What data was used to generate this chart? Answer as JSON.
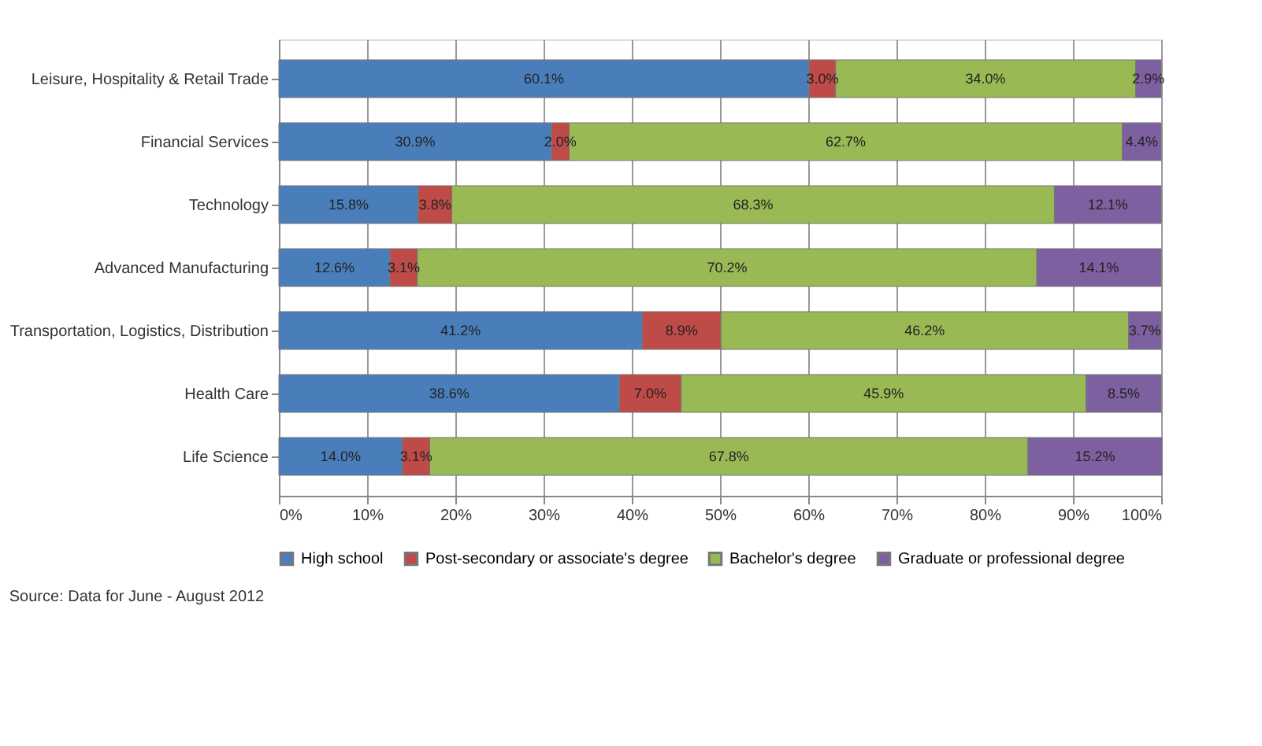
{
  "chart_data": {
    "type": "bar",
    "orientation": "horizontal",
    "stacked": true,
    "categories": [
      "Leisure, Hospitality & Retail Trade",
      "Financial Services",
      "Technology",
      "Advanced Manufacturing",
      "Transportation, Logistics, Distribution",
      "Health Care",
      "Life Science"
    ],
    "series": [
      {
        "name": "High school",
        "color": "#4a7ebb",
        "values": [
          60.1,
          30.9,
          15.8,
          12.6,
          41.2,
          38.6,
          14.0
        ],
        "value_labels": [
          "60.1%",
          "30.9%",
          "15.8%",
          "12.6%",
          "41.2%",
          "38.6%",
          "14.0%"
        ]
      },
      {
        "name": "Post-secondary or associate's degree",
        "color": "#be4b48",
        "values": [
          3.0,
          2.0,
          3.8,
          3.1,
          8.9,
          7.0,
          3.1
        ],
        "value_labels": [
          "3.0%",
          "2.0%",
          "3.8%",
          "3.1%",
          "8.9%",
          "7.0%",
          "3.1%"
        ]
      },
      {
        "name": "Bachelor's degree",
        "color": "#98b954",
        "values": [
          34.0,
          62.7,
          68.3,
          70.2,
          46.2,
          45.9,
          67.8
        ],
        "value_labels": [
          "34.0%",
          "62.7%",
          "68.3%",
          "70.2%",
          "46.2%",
          "45.9%",
          "67.8%"
        ]
      },
      {
        "name": "Graduate or professional degree",
        "color": "#7d60a0",
        "values": [
          2.9,
          4.4,
          12.1,
          14.1,
          3.7,
          8.5,
          15.2
        ],
        "value_labels": [
          "2.9%",
          "4.4%",
          "12.1%",
          "14.1%",
          "3.7%",
          "8.5%",
          "15.2%"
        ]
      }
    ],
    "xlim": [
      0,
      100
    ],
    "xticks": [
      {
        "value": 0,
        "label": "0%"
      },
      {
        "value": 10,
        "label": "10%"
      },
      {
        "value": 20,
        "label": "20%"
      },
      {
        "value": 30,
        "label": "30%"
      },
      {
        "value": 40,
        "label": "40%"
      },
      {
        "value": 50,
        "label": "50%"
      },
      {
        "value": 60,
        "label": "60%"
      },
      {
        "value": 70,
        "label": "70%"
      },
      {
        "value": 80,
        "label": "80%"
      },
      {
        "value": 90,
        "label": "90%"
      },
      {
        "value": 100,
        "label": "100%"
      }
    ],
    "grid": "x",
    "legend": "bottom",
    "annotations": [
      "Source: Data for June - August 2012"
    ]
  }
}
